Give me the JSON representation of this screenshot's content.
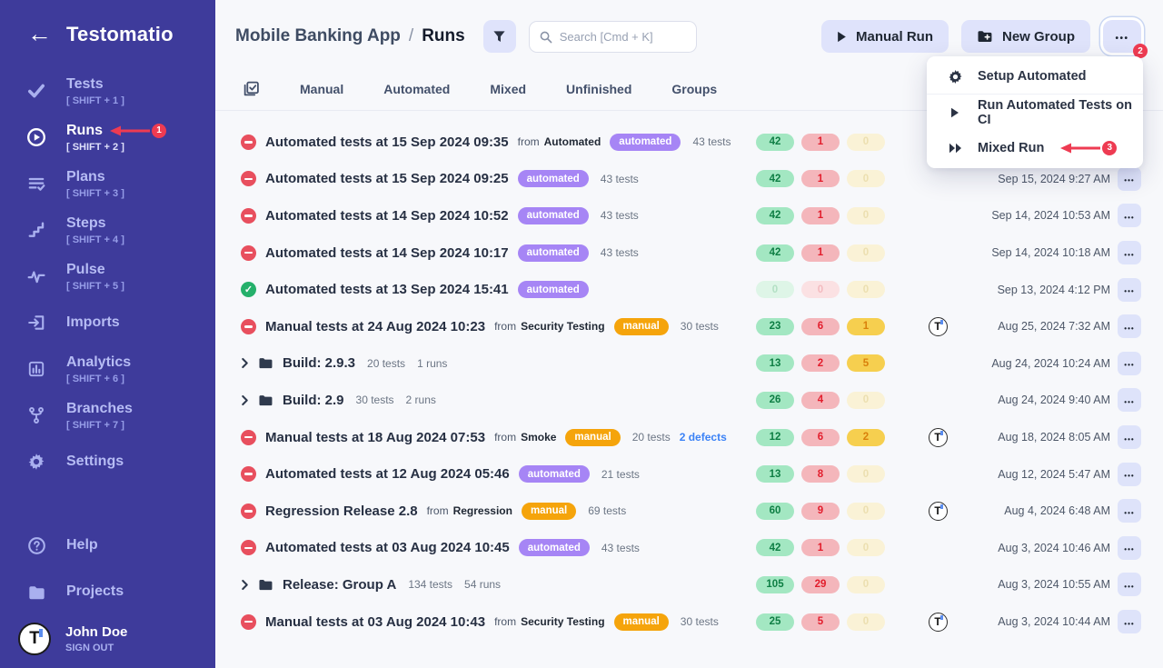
{
  "sidebar": {
    "logo": "Testomatio",
    "items": [
      {
        "label": "Tests",
        "shortcut": "[ SHIFT + 1 ]",
        "icon": "check"
      },
      {
        "label": "Runs",
        "shortcut": "[ SHIFT + 2 ]",
        "icon": "play-circle",
        "active": true,
        "annotation": "1"
      },
      {
        "label": "Plans",
        "shortcut": "[ SHIFT + 3 ]",
        "icon": "list-check"
      },
      {
        "label": "Steps",
        "shortcut": "[ SHIFT + 4 ]",
        "icon": "steps"
      },
      {
        "label": "Pulse",
        "shortcut": "[ SHIFT + 5 ]",
        "icon": "pulse"
      },
      {
        "label": "Imports",
        "shortcut": "",
        "icon": "import"
      },
      {
        "label": "Analytics",
        "shortcut": "[ SHIFT + 6 ]",
        "icon": "bar-chart"
      },
      {
        "label": "Branches",
        "shortcut": "[ SHIFT + 7 ]",
        "icon": "git-branch"
      },
      {
        "label": "Settings",
        "shortcut": "",
        "icon": "gear"
      }
    ],
    "footer": [
      {
        "label": "Help",
        "icon": "question-circle"
      },
      {
        "label": "Projects",
        "icon": "folder"
      }
    ],
    "user": {
      "name": "John Doe",
      "action": "SIGN OUT"
    }
  },
  "header": {
    "breadcrumb": {
      "project": "Mobile Banking App",
      "separator": "/",
      "page": "Runs"
    },
    "search_placeholder": "Search [Cmd + K]",
    "buttons": {
      "manual_run": "Manual Run",
      "new_group": "New Group",
      "more_badge": "2"
    }
  },
  "menu": {
    "items": [
      {
        "label": "Setup Automated",
        "icon": "gear"
      },
      {
        "label": "Run Automated Tests on CI",
        "icon": "play"
      },
      {
        "label": "Mixed Run",
        "icon": "double-play",
        "annotation": "3"
      }
    ]
  },
  "tabs": [
    "Manual",
    "Automated",
    "Mixed",
    "Unfinished",
    "Groups"
  ],
  "runs": [
    {
      "type": "run",
      "status": "blocked",
      "title": "Automated tests at 15 Sep 2024 09:35",
      "from": "Automated",
      "badge": "automated",
      "tests": "43 tests",
      "counts": [
        "42",
        "1",
        "0"
      ],
      "avatar": false,
      "date": "",
      "menu": false
    },
    {
      "type": "run",
      "status": "blocked",
      "title": "Automated tests at 15 Sep 2024 09:25",
      "from": "",
      "badge": "automated",
      "tests": "43 tests",
      "counts": [
        "42",
        "1",
        "0"
      ],
      "avatar": false,
      "date": "Sep 15, 2024 9:27 AM",
      "menu": true
    },
    {
      "type": "run",
      "status": "blocked",
      "title": "Automated tests at 14 Sep 2024 10:52",
      "from": "",
      "badge": "automated",
      "tests": "43 tests",
      "counts": [
        "42",
        "1",
        "0"
      ],
      "avatar": false,
      "date": "Sep 14, 2024 10:53 AM",
      "menu": true
    },
    {
      "type": "run",
      "status": "blocked",
      "title": "Automated tests at 14 Sep 2024 10:17",
      "from": "",
      "badge": "automated",
      "tests": "43 tests",
      "counts": [
        "42",
        "1",
        "0"
      ],
      "avatar": false,
      "date": "Sep 14, 2024 10:18 AM",
      "menu": true
    },
    {
      "type": "run",
      "status": "passed",
      "title": "Automated tests at 13 Sep 2024 15:41",
      "from": "",
      "badge": "automated",
      "tests": "",
      "counts": [
        "0",
        "0",
        "0"
      ],
      "avatar": false,
      "date": "Sep 13, 2024 4:12 PM",
      "menu": true
    },
    {
      "type": "run",
      "status": "blocked",
      "title": "Manual tests at 24 Aug 2024 10:23",
      "from": "Security Testing",
      "badge": "manual",
      "tests": "30 tests",
      "counts": [
        "23",
        "6",
        "1"
      ],
      "avatar": true,
      "date": "Aug 25, 2024 7:32 AM",
      "menu": true
    },
    {
      "type": "group",
      "title": "Build: 2.9.3",
      "tests": "20 tests",
      "runs_count": "1 runs",
      "counts": [
        "13",
        "2",
        "5"
      ],
      "avatar": false,
      "date": "Aug 24, 2024 10:24 AM",
      "menu": true
    },
    {
      "type": "group",
      "title": "Build: 2.9",
      "tests": "30 tests",
      "runs_count": "2 runs",
      "counts": [
        "26",
        "4",
        "0"
      ],
      "avatar": false,
      "date": "Aug 24, 2024 9:40 AM",
      "menu": true
    },
    {
      "type": "run",
      "status": "blocked",
      "title": "Manual tests at 18 Aug 2024 07:53",
      "from": "Smoke",
      "badge": "manual",
      "tests": "20 tests",
      "defects": "2 defects",
      "counts": [
        "12",
        "6",
        "2"
      ],
      "avatar": true,
      "date": "Aug 18, 2024 8:05 AM",
      "menu": true
    },
    {
      "type": "run",
      "status": "blocked",
      "title": "Automated tests at 12 Aug 2024 05:46",
      "from": "",
      "badge": "automated",
      "tests": "21 tests",
      "counts": [
        "13",
        "8",
        "0"
      ],
      "avatar": false,
      "date": "Aug 12, 2024 5:47 AM",
      "menu": true
    },
    {
      "type": "run",
      "status": "blocked",
      "title": "Regression Release 2.8",
      "from": "Regression",
      "badge": "manual",
      "tests": "69 tests",
      "counts": [
        "60",
        "9",
        "0"
      ],
      "avatar": true,
      "date": "Aug 4, 2024 6:48 AM",
      "menu": true
    },
    {
      "type": "run",
      "status": "blocked",
      "title": "Automated tests at 03 Aug 2024 10:45",
      "from": "",
      "badge": "automated",
      "tests": "43 tests",
      "counts": [
        "42",
        "1",
        "0"
      ],
      "avatar": false,
      "date": "Aug 3, 2024 10:46 AM",
      "menu": true
    },
    {
      "type": "group",
      "title": "Release: Group A",
      "tests": "134 tests",
      "runs_count": "54 runs",
      "counts": [
        "105",
        "29",
        "0"
      ],
      "avatar": false,
      "date": "Aug 3, 2024 10:55 AM",
      "menu": true
    },
    {
      "type": "run",
      "status": "blocked",
      "title": "Manual tests at 03 Aug 2024 10:43",
      "from": "Security Testing",
      "badge": "manual",
      "tests": "30 tests",
      "counts": [
        "25",
        "5",
        "0"
      ],
      "avatar": true,
      "date": "Aug 3, 2024 10:44 AM",
      "menu": true
    }
  ],
  "colors": {
    "sidebar_bg": "#3e3b9b",
    "accent_lavender": "#dfe3fb",
    "badge_automated": "#a685f5",
    "badge_manual": "#f5a40b",
    "pill_green_bg": "#a3e7c2",
    "pill_green_text": "#0e7e44",
    "pill_red_bg": "#f4b6bb",
    "pill_red_text": "#e21d2c",
    "pill_yellow_bg": "#f6cf4f",
    "pill_yellow_text": "#d9800b",
    "status_blocked": "#e84f5e",
    "status_passed": "#25b06b",
    "annotation_red": "#ee3b52",
    "defects_link": "#3b82f6"
  }
}
